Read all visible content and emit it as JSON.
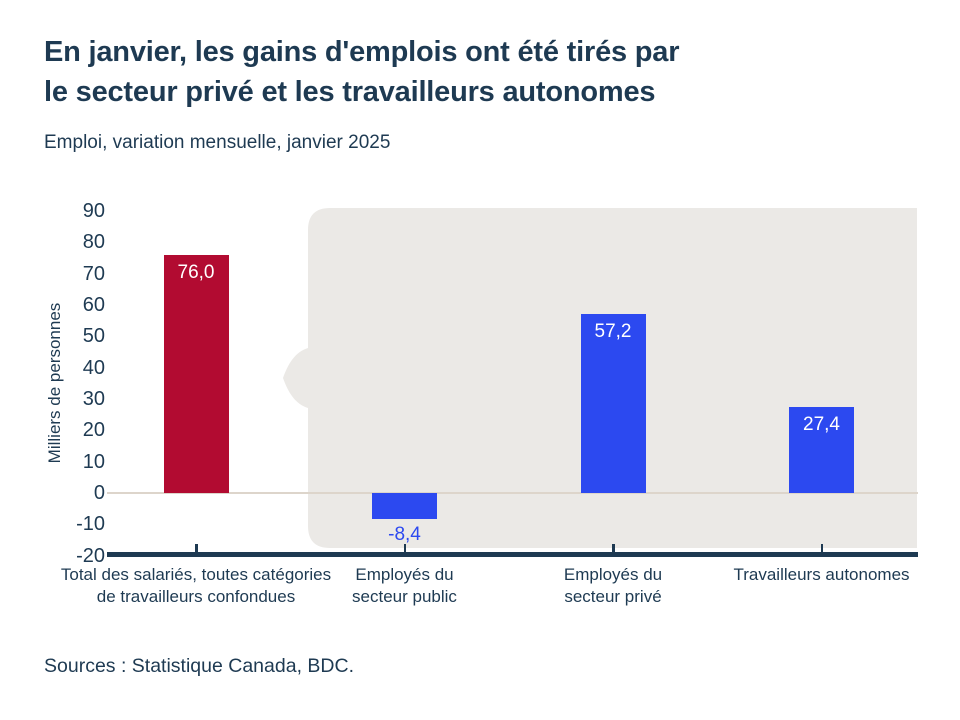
{
  "header": {
    "title_line1": "En janvier, les gains d'emplois ont été tirés par",
    "title_line2": "le secteur privé et les travailleurs autonomes",
    "subtitle": "Emploi, variation mensuelle, janvier 2025"
  },
  "chart_data": {
    "type": "bar",
    "title": "Emploi, variation mensuelle, janvier 2025",
    "xlabel": "",
    "ylabel": "Milliers de personnes",
    "ylim": [
      -20,
      90
    ],
    "ytick_step": 10,
    "yticks": [
      90,
      80,
      70,
      60,
      50,
      40,
      30,
      20,
      10,
      0,
      -10,
      -20
    ],
    "grid": "zero-baseline-only",
    "legend": "none",
    "categories": [
      "Total des salariés, toutes catégories\nde travailleurs confondues",
      "Employés du\nsecteur public",
      "Employés du\nsecteur privé",
      "Travailleurs autonomes"
    ],
    "values": [
      76.0,
      -8.4,
      57.2,
      27.4
    ],
    "value_labels": [
      "76,0",
      "-8,4",
      "57,2",
      "27,4"
    ],
    "bar_colors": [
      "#b20b31",
      "#2c49f0",
      "#2c49f0",
      "#2c49f0"
    ],
    "annotations": "gray speech-bubble panel highlights the three right-hand categories, notch pointing at total bar"
  },
  "footer": {
    "sources": "Sources : Statistique Canada, BDC."
  },
  "colors": {
    "text_navy": "#1e3a52",
    "bar_red": "#b20b31",
    "bar_blue": "#2c49f0",
    "bubble_gray": "#ebe9e6",
    "zero_line": "#ddd5cb",
    "value_label_inside": "#ffffff"
  }
}
